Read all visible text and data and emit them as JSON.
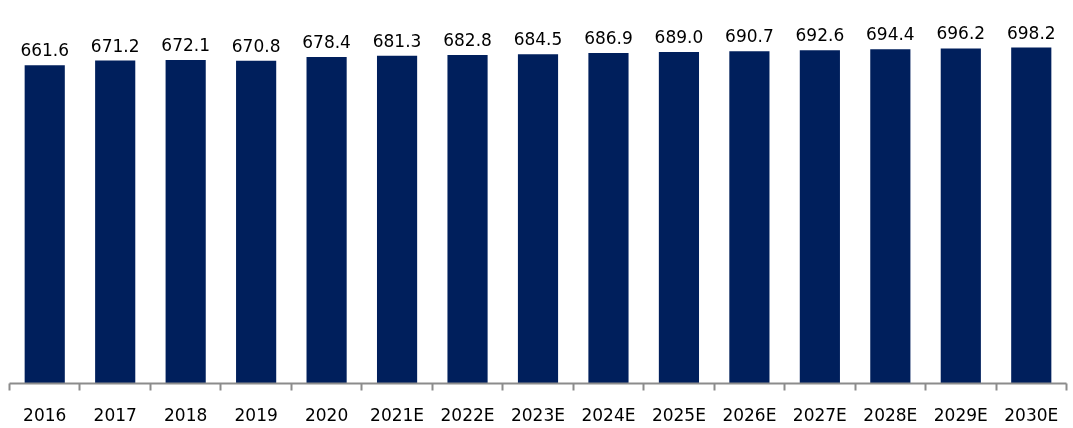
{
  "chart_data": {
    "type": "bar",
    "categories": [
      "2016",
      "2017",
      "2018",
      "2019",
      "2020",
      "2021E",
      "2022E",
      "2023E",
      "2024E",
      "2025E",
      "2026E",
      "2027E",
      "2028E",
      "2029E",
      "2030E"
    ],
    "values": [
      661.6,
      671.2,
      672.1,
      670.8,
      678.4,
      681.3,
      682.8,
      684.5,
      686.9,
      689.0,
      690.7,
      692.6,
      694.4,
      696.2,
      698.2
    ],
    "value_labels": [
      "661.6",
      "671.2",
      "672.1",
      "670.8",
      "678.4",
      "681.3",
      "682.8",
      "684.5",
      "686.9",
      "689.0",
      "690.7",
      "692.6",
      "694.4",
      "696.2",
      "698.2"
    ],
    "color": "#001f5c",
    "grid": false
  }
}
